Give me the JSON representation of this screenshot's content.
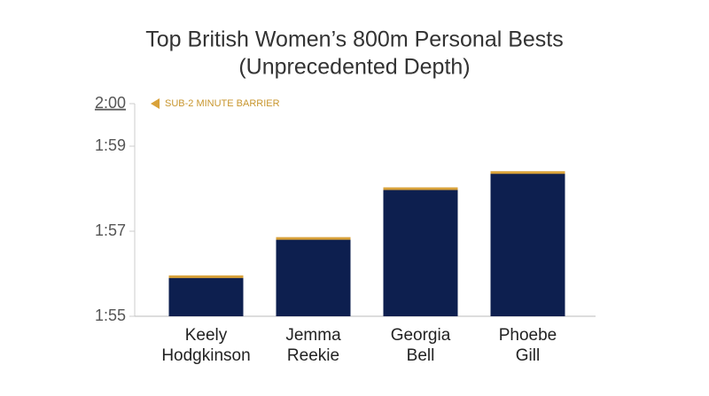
{
  "chart_data": {
    "type": "bar",
    "title": [
      "Top British Women’s 800m Personal Bests",
      "(Unprecedented Depth)"
    ],
    "annotation": "SUB-2 MINUTE BARRIER",
    "categories": [
      [
        "Keely",
        "Hodgkinson"
      ],
      [
        "Jemma",
        "Reekie"
      ],
      [
        "Georgia",
        "Bell"
      ],
      [
        "Phoebe",
        "Gill"
      ]
    ],
    "values": [
      115.93,
      116.83,
      118.0,
      118.38
    ],
    "color": "#0d1f4f",
    "accent": "#d9a23a",
    "ylim": [
      115,
      120
    ],
    "yticks": [
      {
        "value": 115,
        "label": "1:55"
      },
      {
        "value": 117,
        "label": "1:57"
      },
      {
        "value": 119,
        "label": "1:59"
      },
      {
        "value": 120,
        "label": "2:00"
      }
    ]
  }
}
